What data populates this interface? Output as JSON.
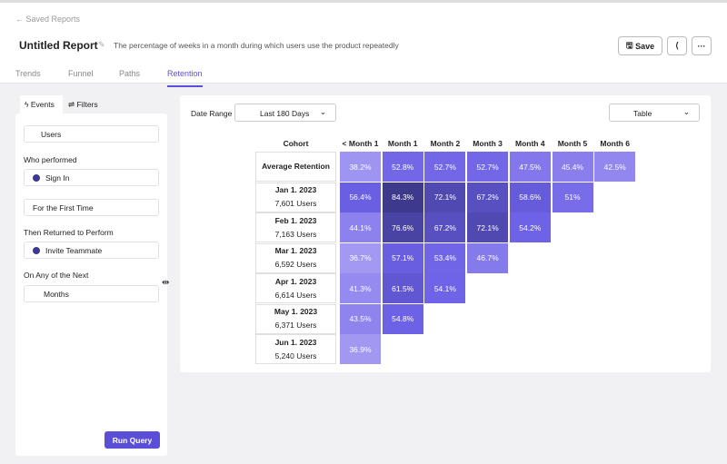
{
  "header": {
    "back": "Saved Reports",
    "title": "Untitled Report",
    "description": "The percentage of weeks in a month during which users use the product repeatedly",
    "save": "Save",
    "more": "···"
  },
  "tabs": [
    "Trends",
    "Funnel",
    "Paths",
    "Retention"
  ],
  "sidebar": {
    "tabs": [
      "Events",
      "Filters"
    ],
    "who": "Users",
    "who_performed_label": "Who performed",
    "event": "Sign In",
    "first_time": "For the First Time",
    "returned_label": "Then Returned to Perform",
    "return_event": "Invite Teammate",
    "next_label": "On Any of the Next",
    "period": "Months",
    "run": "Run Query"
  },
  "report": {
    "date_range_label": "Date Range",
    "date_range": "Last 180 Days",
    "view": "Table",
    "columns": [
      "Cohort",
      "< Month 1",
      "Month 1",
      "Month 2",
      "Month 3",
      "Month 4",
      "Month 5",
      "Month 6"
    ],
    "rows": [
      {
        "cohort": "Average Retention",
        "values": [
          "38.2%",
          "52.8%",
          "52.7%",
          "52.7%",
          "47.5%",
          "45.4%",
          "42.5%"
        ]
      },
      {
        "cohort": "Jan 1. 2023",
        "users": "7,601 Users",
        "values": [
          "56.4%",
          "84.3%",
          "72.1%",
          "67.2%",
          "58.6%",
          "51%"
        ]
      },
      {
        "cohort": "Feb 1. 2023",
        "users": "7,163 Users",
        "values": [
          "44.1%",
          "76.6%",
          "67.2%",
          "72.1%",
          "54.2%"
        ]
      },
      {
        "cohort": "Mar 1. 2023",
        "users": "6,592 Users",
        "values": [
          "36.7%",
          "57.1%",
          "53.4%",
          "46.7%"
        ]
      },
      {
        "cohort": "Apr 1. 2023",
        "users": "6,614 Users",
        "values": [
          "41.3%",
          "61.5%",
          "54.1%"
        ]
      },
      {
        "cohort": "May 1. 2023",
        "users": "6,371 Users",
        "values": [
          "43.5%",
          "54.8%"
        ]
      },
      {
        "cohort": "Jun 1. 2023",
        "users": "5,240 Users",
        "values": [
          "36.9%"
        ]
      }
    ]
  }
}
